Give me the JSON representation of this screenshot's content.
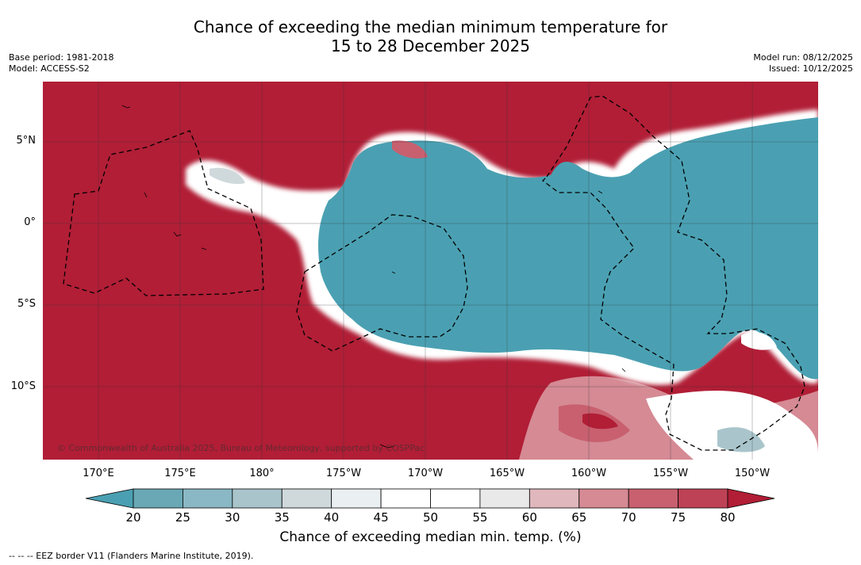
{
  "title": {
    "line1": "Chance of exceeding the median minimum temperature for",
    "line2": "15 to 28 December 2025"
  },
  "meta": {
    "base_period": "Base period: 1981-2018",
    "model": "Model: ACCESS-S2",
    "model_run": "Model run: 08/12/2025",
    "issued": "Issued: 10/12/2025"
  },
  "map": {
    "latitudes": [
      "5°N",
      "0°",
      "5°S",
      "10°S"
    ],
    "longitudes": [
      "170°E",
      "175°E",
      "180°",
      "175°W",
      "170°W",
      "165°W",
      "160°W",
      "155°W",
      "150°W"
    ],
    "copyright": "© Commonwealth of Australia 2025, Bureau of Meteorology, supported by COSPPac",
    "colors": {
      "high": "#b11e36",
      "low": "#4aa0b2"
    }
  },
  "colorbar": {
    "ticks": [
      "20",
      "25",
      "30",
      "35",
      "40",
      "45",
      "50",
      "55",
      "60",
      "65",
      "70",
      "75",
      "80"
    ],
    "colors": [
      "#6aa8b5",
      "#8ab8c4",
      "#a9c5cb",
      "#cfd9dc",
      "#eaeff1",
      "#ffffff",
      "#ffffff",
      "#e9e9e9",
      "#e0b7bc",
      "#d58a94",
      "#c8606f",
      "#be4255"
    ],
    "extend_low_color": "#4aa0b2",
    "extend_high_color": "#b11e36",
    "label": "Chance of exceeding median min. temp. (%)"
  },
  "footer": "--  --  -- EEZ border V11 (Flanders Marine Institute, 2019)."
}
